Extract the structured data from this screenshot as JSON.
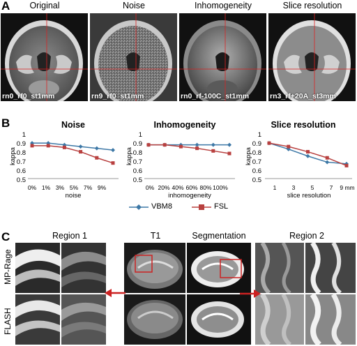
{
  "section_a": {
    "letter": "A",
    "panels": [
      {
        "title": "Original",
        "code": "rn0_rf0_st1mm"
      },
      {
        "title": "Noise",
        "code": "rn9_rf0_st1mm"
      },
      {
        "title": "Inhomogeneity",
        "code": "rn0_rf-100C_st1mm"
      },
      {
        "title": "Slice resolution",
        "code": "rn3_rf+20A_st3mm"
      }
    ]
  },
  "section_b": {
    "letter": "B",
    "legend": [
      {
        "name": "VBM8",
        "color": "#3d78a6",
        "marker": "diamond"
      },
      {
        "name": "FSL",
        "color": "#b8403f",
        "marker": "square"
      }
    ]
  },
  "chart_data": [
    {
      "type": "line",
      "title": "Noise",
      "xlabel": "noise",
      "ylabel": "kappa",
      "categories": [
        "0%",
        "1%",
        "3%",
        "5%",
        "7%",
        "9%"
      ],
      "ylim": [
        0.5,
        1.0
      ],
      "yticks": [
        "0.5",
        "0.6",
        "0.7",
        "0.8",
        "0.9",
        "1"
      ],
      "series": [
        {
          "name": "VBM8",
          "values": [
            0.91,
            0.91,
            0.89,
            0.87,
            0.85,
            0.83
          ]
        },
        {
          "name": "FSL",
          "values": [
            0.88,
            0.88,
            0.86,
            0.81,
            0.74,
            0.68
          ]
        }
      ]
    },
    {
      "type": "line",
      "title": "Inhomogeneity",
      "xlabel": "inhomogeneity",
      "ylabel": "kappa",
      "categories": [
        "0%",
        "20%",
        "40%",
        "60%",
        "80%",
        "100%"
      ],
      "ylim": [
        0.5,
        1.0
      ],
      "yticks": [
        "0.5",
        "0.6",
        "0.7",
        "0.8",
        "0.9",
        "1"
      ],
      "series": [
        {
          "name": "VBM8",
          "values": [
            0.89,
            0.89,
            0.89,
            0.89,
            0.89,
            0.89
          ]
        },
        {
          "name": "FSL",
          "values": [
            0.89,
            0.89,
            0.87,
            0.85,
            0.82,
            0.79
          ]
        }
      ]
    },
    {
      "type": "line",
      "title": "Slice resolution",
      "xlabel": "slice resolution",
      "ylabel": "kappa",
      "categories": [
        "1",
        "3",
        "5",
        "7",
        "9 mm"
      ],
      "ylim": [
        0.5,
        1.0
      ],
      "yticks": [
        "0.5",
        "0.6",
        "0.7",
        "0.8",
        "0.9",
        "1"
      ],
      "series": [
        {
          "name": "VBM8",
          "values": [
            0.91,
            0.84,
            0.76,
            0.69,
            0.67
          ]
        },
        {
          "name": "FSL",
          "values": [
            0.91,
            0.87,
            0.81,
            0.74,
            0.65
          ]
        }
      ]
    }
  ],
  "section_c": {
    "letter": "C",
    "headers": {
      "region1": "Region 1",
      "t1": "T1",
      "segmentation": "Segmentation",
      "region2": "Region 2"
    },
    "rows": [
      "MP-Rage",
      "FLASH"
    ],
    "arrow_color": "#cc2222"
  }
}
